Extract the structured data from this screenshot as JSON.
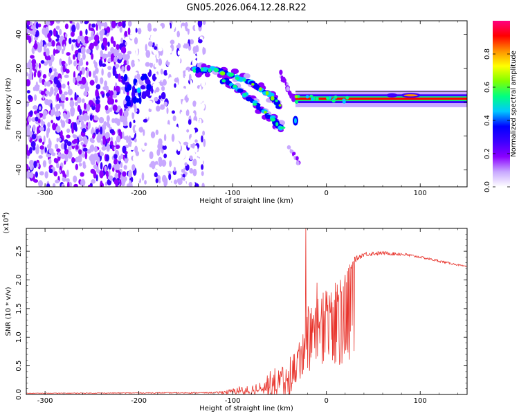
{
  "title": "GN05.2026.064.12.28.R22",
  "chart_data": [
    {
      "type": "heatmap",
      "xlabel": "Height of straight line (km)",
      "ylabel": "Frequency (Hz)",
      "xlim": [
        -320,
        150
      ],
      "ylim": [
        -50,
        48
      ],
      "xticks": [
        -300,
        -200,
        -100,
        0,
        100
      ],
      "yticks": [
        -40,
        -20,
        0,
        20,
        40
      ],
      "colorbar": {
        "label": "Normalized spectral amplitude",
        "range": [
          0,
          1
        ],
        "ticks": [
          0.0,
          0.2,
          0.4,
          0.6,
          0.8
        ],
        "colors": [
          "#ffffff",
          "#c8a8ff",
          "#8a00ff",
          "#3c00ff",
          "#0000ff",
          "#00c8ff",
          "#00ff80",
          "#80ff00",
          "#ffff00",
          "#ff9000",
          "#ff0000",
          "#ff0080"
        ]
      },
      "features": [
        {
          "name": "noise-region",
          "x_range": [
            -320,
            -130
          ],
          "freq_range": [
            -50,
            48
          ],
          "amplitude": 0.15
        },
        {
          "name": "bright-patch",
          "x": -200,
          "freq": 7,
          "amplitude": 0.3
        },
        {
          "name": "descending-track-upper",
          "points": [
            [
              -140,
              19
            ],
            [
              -120,
              19
            ],
            [
              -100,
              16
            ],
            [
              -80,
              11
            ],
            [
              -60,
              4
            ],
            [
              -50,
              -2
            ]
          ],
          "amplitude": 0.45
        },
        {
          "name": "descending-track-lower",
          "points": [
            [
              -110,
              13
            ],
            [
              -90,
              6
            ],
            [
              -70,
              -4
            ],
            [
              -55,
              -12
            ],
            [
              -48,
              -15
            ]
          ],
          "amplitude": 0.35
        },
        {
          "name": "short-streak",
          "points": [
            [
              -50,
              17
            ],
            [
              -35,
              2
            ]
          ],
          "amplitude": 0.25
        },
        {
          "name": "small-blob",
          "x": -33,
          "freq": -11,
          "amplitude": 0.3
        },
        {
          "name": "steady-line",
          "x_range": [
            -33,
            150
          ],
          "freq": 2,
          "amplitude": 0.9
        }
      ]
    },
    {
      "type": "line",
      "xlabel": "Height of straight line (km)",
      "ylabel": "SNR (10 * v/v)",
      "multiplier_label": "(x10",
      "multiplier_exp": "4",
      "multiplier_close": ")",
      "xlim": [
        -320,
        150
      ],
      "ylim": [
        0,
        2.9
      ],
      "xticks": [
        -300,
        -200,
        -100,
        0,
        100
      ],
      "yticks": [
        0.0,
        0.5,
        1.0,
        1.5,
        2.0,
        2.5
      ],
      "series": [
        {
          "name": "SNR",
          "color": "#e8342c",
          "envelope_x": [
            -320,
            -120,
            -100,
            -80,
            -60,
            -40,
            -30,
            -25,
            -20,
            -10,
            0,
            10,
            20,
            30,
            40,
            60,
            80,
            100,
            120,
            150
          ],
          "envelope_y": [
            0.02,
            0.03,
            0.05,
            0.12,
            0.3,
            0.5,
            0.75,
            1.2,
            1.4,
            1.6,
            1.7,
            1.85,
            2.1,
            2.35,
            2.45,
            2.47,
            2.45,
            2.4,
            2.33,
            2.23
          ],
          "noise_amp": [
            0.005,
            0.01,
            0.05,
            0.12,
            0.25,
            0.35,
            0.4,
            0.45,
            0.4,
            0.35,
            0.3,
            0.25,
            0.15,
            0.05,
            0.04,
            0.03,
            0.03,
            0.02,
            0.02,
            0.01
          ],
          "spikes": [
            [
              -22,
              2.9
            ],
            [
              -25,
              1.05
            ],
            [
              -10,
              1.95
            ],
            [
              14,
              0.52
            ],
            [
              15,
              2.0
            ]
          ]
        }
      ]
    }
  ]
}
